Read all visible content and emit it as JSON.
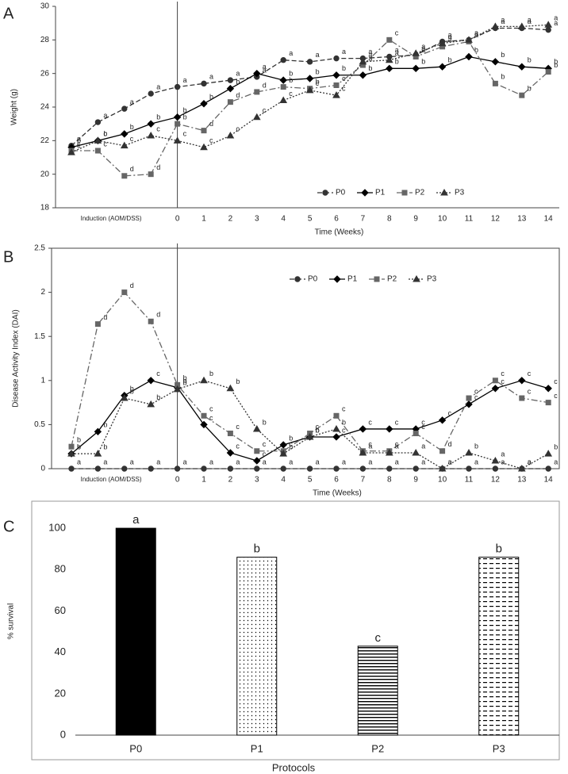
{
  "chart_data": [
    {
      "type": "line",
      "panel": "A",
      "y_label": "Weight (g)",
      "x_label": "Time (Weeks)",
      "induction": "Induction  (AOM/DSS)",
      "categories": [
        null,
        null,
        null,
        null,
        0,
        1,
        2,
        3,
        4,
        5,
        6,
        7,
        8,
        9,
        10,
        11,
        12,
        13,
        14
      ],
      "ylim": [
        18,
        30
      ],
      "yticks": [
        18,
        20,
        22,
        24,
        26,
        28,
        30
      ],
      "legend": "bottom",
      "series": [
        {
          "name": "P0",
          "color": "#333333",
          "marker": "circle",
          "line": "dashed",
          "values": [
            21.7,
            23.1,
            23.9,
            24.8,
            25.2,
            25.4,
            25.6,
            25.8,
            26.8,
            26.7,
            26.9,
            26.9,
            27.0,
            27.1,
            27.9,
            28.0,
            28.7,
            28.7,
            28.6
          ],
          "letters": [
            "a",
            "a",
            "a",
            "a",
            "a",
            "a",
            "a",
            "a",
            "a",
            "a",
            "a",
            "a",
            "a",
            "a",
            "a",
            "a",
            "a",
            "a",
            "a"
          ]
        },
        {
          "name": "P1",
          "color": "#000000",
          "marker": "diamond",
          "line": "solid",
          "values": [
            21.6,
            22.0,
            22.4,
            23.0,
            23.4,
            24.2,
            25.1,
            26.0,
            25.6,
            25.7,
            25.9,
            25.9,
            26.3,
            26.3,
            26.4,
            27.0,
            26.7,
            26.4,
            26.3
          ],
          "letters": [
            "b",
            "b",
            "b",
            "b",
            "b",
            "b",
            "b",
            "a",
            "b",
            "b",
            "b",
            "b",
            "b",
            "b",
            "b",
            "b",
            "b",
            "b",
            "b"
          ]
        },
        {
          "name": "P2",
          "color": "#666666",
          "marker": "square",
          "line": "dashdot",
          "values": [
            21.4,
            21.4,
            19.9,
            20.0,
            23.0,
            22.6,
            24.3,
            24.9,
            25.2,
            25.1,
            25.3,
            26.5,
            28.0,
            27.0,
            27.6,
            27.9,
            25.4,
            24.7,
            26.1
          ],
          "letters": [
            "c",
            "c",
            "d",
            "d",
            "b",
            "d",
            "d",
            "d",
            "b",
            "b",
            "c",
            "a",
            "c",
            "a",
            "a",
            "a",
            "b",
            "b",
            "b"
          ]
        },
        {
          "name": "P3",
          "color": "#333333",
          "marker": "triangle",
          "line": "dotted",
          "values": [
            21.3,
            22.0,
            21.7,
            22.3,
            22.0,
            21.6,
            22.3,
            23.4,
            24.4,
            25.0,
            24.7,
            26.7,
            26.8,
            27.2,
            27.8,
            28.0,
            28.8,
            28.8,
            28.9
          ],
          "letters": [
            "c",
            "c",
            "c",
            "c",
            "c",
            "c",
            "c",
            "c",
            "c",
            "c",
            "c",
            "a",
            "a",
            "a",
            "a",
            "a",
            "a",
            "a",
            "a"
          ]
        }
      ]
    },
    {
      "type": "line",
      "panel": "B",
      "y_label": "Disease Activity Index (DAI)",
      "x_label": "Time (Weeks)",
      "induction": "Induction  (AOM/DSS)",
      "categories": [
        null,
        null,
        null,
        null,
        0,
        1,
        2,
        3,
        4,
        5,
        6,
        7,
        8,
        9,
        10,
        11,
        12,
        13,
        14
      ],
      "ylim": [
        0,
        2.5
      ],
      "yticks": [
        0,
        0.5,
        1,
        1.5,
        2,
        2.5
      ],
      "legend": "top-right",
      "series": [
        {
          "name": "P0",
          "color": "#333333",
          "marker": "circle",
          "line": "dashed",
          "values": [
            0,
            0,
            0,
            0,
            0,
            0,
            0,
            0,
            0,
            0,
            0,
            0,
            0,
            0,
            0,
            0,
            0,
            0,
            0
          ],
          "letters": [
            "a",
            "a",
            "a",
            "a",
            "a",
            "a",
            "a",
            "a",
            "a",
            "a",
            "a",
            "a",
            "a",
            "a",
            "a",
            "a",
            "a",
            "a",
            "a"
          ]
        },
        {
          "name": "P1",
          "color": "#000000",
          "marker": "diamond",
          "line": "solid",
          "values": [
            0.17,
            0.42,
            0.83,
            1.0,
            0.92,
            0.5,
            0.18,
            0.09,
            0.27,
            0.36,
            0.36,
            0.45,
            0.45,
            0.45,
            0.55,
            0.73,
            0.91,
            1.0,
            0.91
          ],
          "letters": [
            "b",
            "b",
            "b",
            "c",
            "b",
            "c",
            "c",
            "c",
            "b",
            "b",
            "c",
            "c",
            "c",
            "c",
            "c",
            "c",
            "c",
            "c",
            "c"
          ]
        },
        {
          "name": "P2",
          "color": "#666666",
          "marker": "square",
          "line": "dashdot",
          "values": [
            0.25,
            1.64,
            2.0,
            1.67,
            0.95,
            0.6,
            0.4,
            0.2,
            0.2,
            0.4,
            0.6,
            0.2,
            0.2,
            0.4,
            0.2,
            0.8,
            1.0,
            0.8,
            0.75
          ],
          "letters": [
            "b",
            "d",
            "d",
            "d",
            "b",
            "c",
            "c",
            "c",
            "c",
            "c",
            "c",
            "c",
            "c",
            "c",
            "d",
            "c",
            "c",
            "c",
            "c"
          ]
        },
        {
          "name": "P3",
          "color": "#333333",
          "marker": "triangle",
          "line": "dotted",
          "values": [
            0.17,
            0.17,
            0.8,
            0.73,
            0.9,
            1.0,
            0.91,
            0.45,
            0.17,
            0.36,
            0.45,
            0.18,
            0.18,
            0.18,
            0,
            0.18,
            0.09,
            0,
            0.17
          ],
          "letters": [
            "b",
            "b",
            "b",
            "b",
            "b",
            "b",
            "b",
            "b",
            "b",
            "b",
            "b",
            "a",
            "a",
            "a",
            "a",
            "b",
            "a",
            "a",
            "b"
          ]
        }
      ]
    },
    {
      "type": "bar",
      "panel": "C",
      "y_label": "% survival",
      "x_label": "Protocols",
      "categories": [
        "P0",
        "P1",
        "P2",
        "P3"
      ],
      "values": [
        100,
        86,
        43,
        86
      ],
      "letters": [
        "a",
        "b",
        "c",
        "b"
      ],
      "patterns": [
        "solid",
        "dots",
        "hlines",
        "dashes"
      ],
      "color": "#000000",
      "ylim": [
        0,
        110
      ],
      "yticks": [
        0,
        20,
        40,
        60,
        80,
        100
      ]
    }
  ]
}
